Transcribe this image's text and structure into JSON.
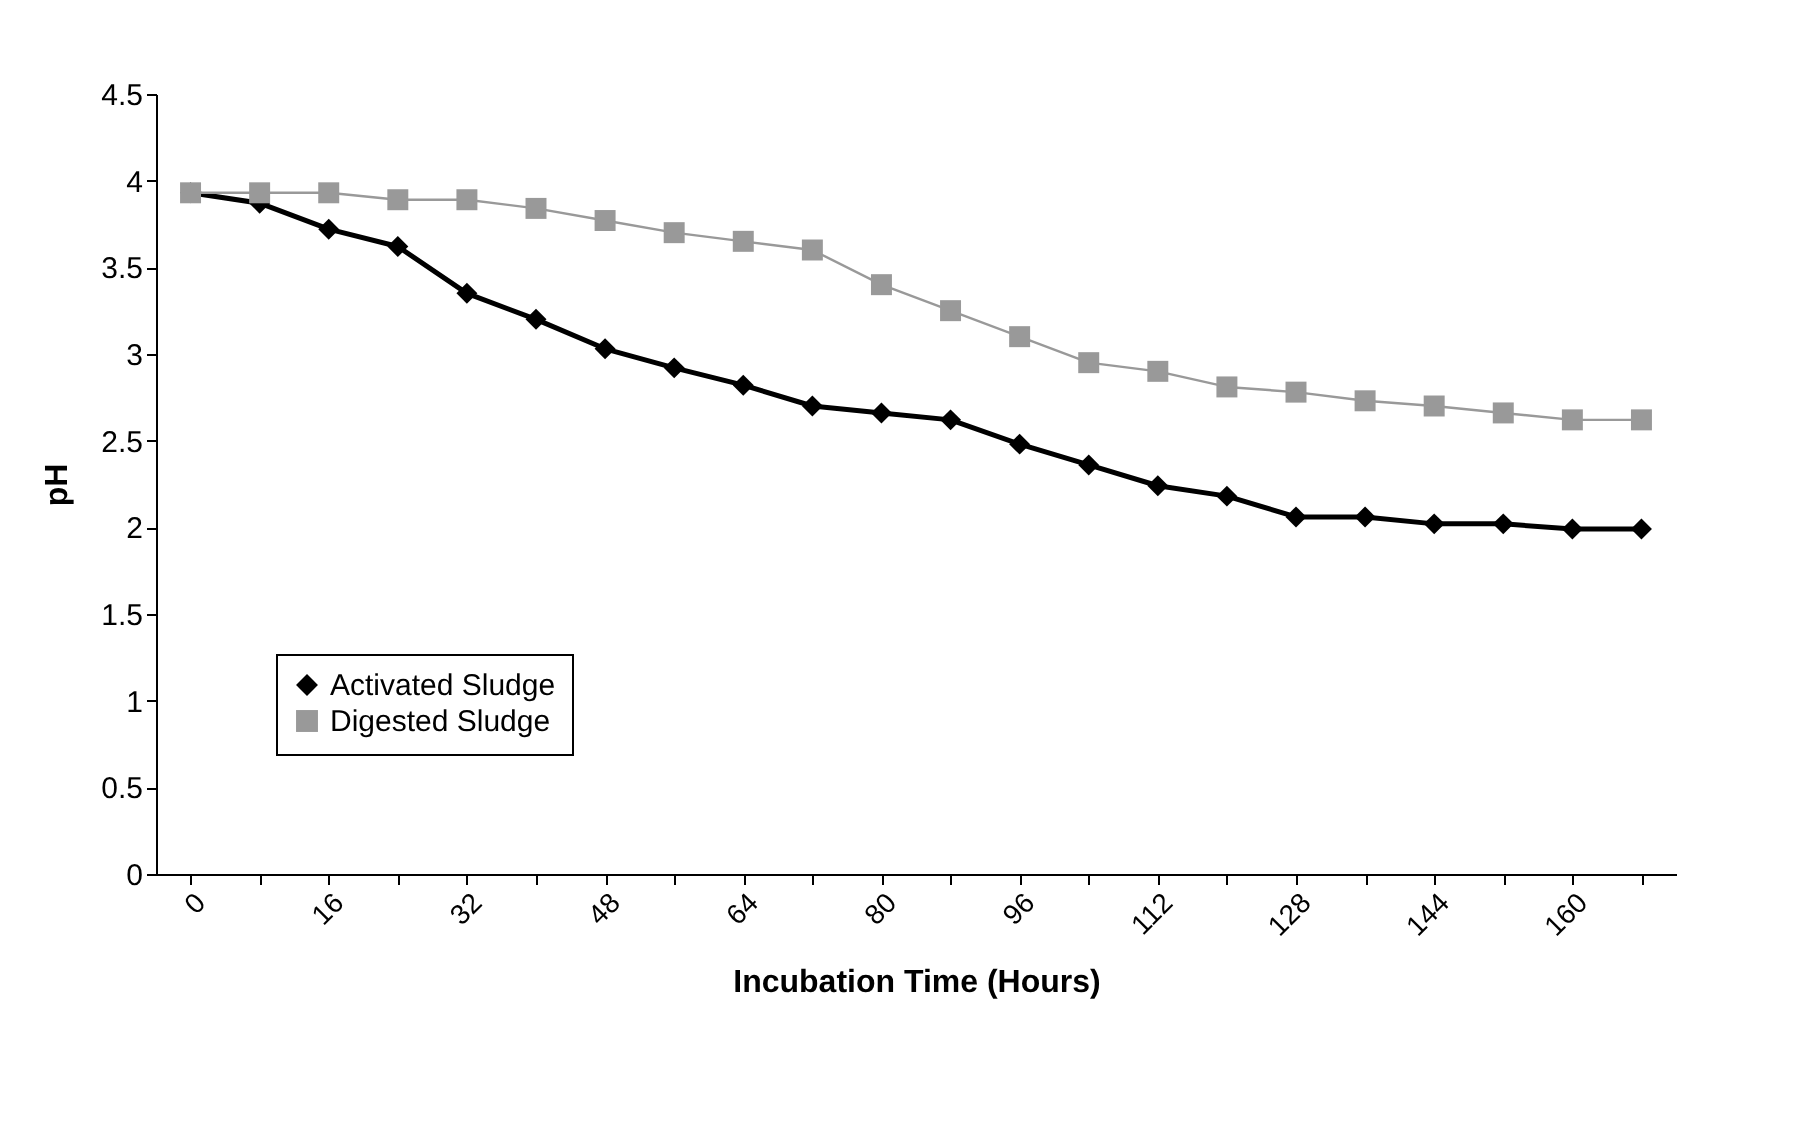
{
  "chart_data": {
    "type": "line",
    "xlabel": "Incubation Time (Hours)",
    "ylabel": "pH",
    "categories": [
      "0",
      null,
      "16",
      null,
      "32",
      null,
      "48",
      null,
      "64",
      null,
      "80",
      null,
      "96",
      null,
      "112",
      null,
      "128",
      null,
      "144",
      null,
      "160",
      null
    ],
    "series": [
      {
        "name": "Activated Sludge",
        "color": "#000000",
        "marker": "diamond",
        "values": [
          3.93,
          3.87,
          3.72,
          3.62,
          3.35,
          3.2,
          3.03,
          2.92,
          2.82,
          2.7,
          2.66,
          2.62,
          2.48,
          2.36,
          2.24,
          2.18,
          2.06,
          2.06,
          2.02,
          2.02,
          1.99,
          1.99
        ]
      },
      {
        "name": "Digested Sludge",
        "color": "#999999",
        "marker": "square",
        "values": [
          3.93,
          3.93,
          3.93,
          3.89,
          3.89,
          3.84,
          3.77,
          3.7,
          3.65,
          3.6,
          3.4,
          3.25,
          3.1,
          2.95,
          2.9,
          2.81,
          2.78,
          2.73,
          2.7,
          2.66,
          2.62,
          2.62
        ]
      }
    ],
    "ylim": [
      0,
      4.5
    ],
    "yticks": [
      0,
      0.5,
      1,
      1.5,
      2,
      2.5,
      3,
      3.5,
      4,
      4.5
    ],
    "grid": false,
    "legend": "bottom left",
    "line_style": "solid"
  }
}
